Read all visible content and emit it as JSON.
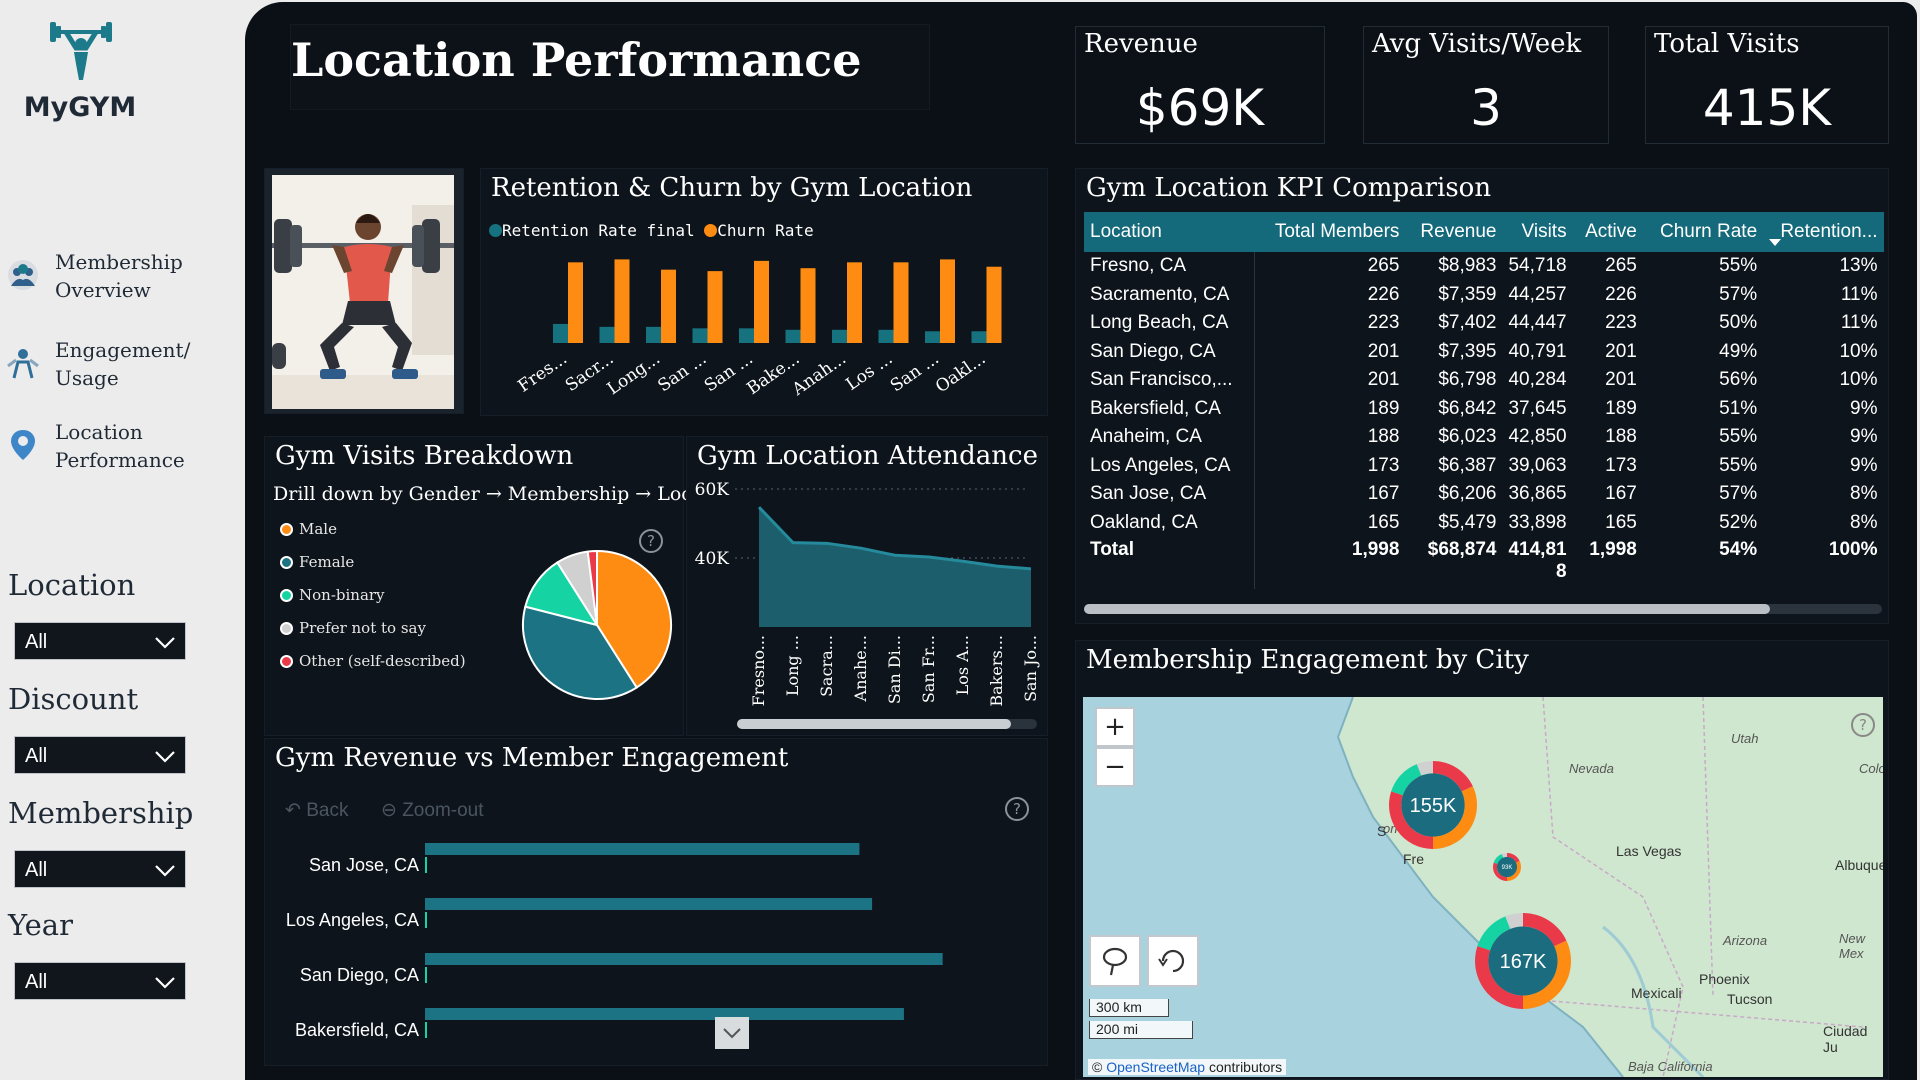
{
  "brand": {
    "name": "MyGYM"
  },
  "nav": [
    {
      "line1": "Membership",
      "line2": "Overview",
      "icon": "membership-icon"
    },
    {
      "line1": "Engagement/",
      "line2": "Usage",
      "icon": "engagement-icon"
    },
    {
      "line1": "Location",
      "line2": "Performance",
      "icon": "location-pin-icon"
    }
  ],
  "filters": [
    {
      "label": "Location",
      "value": "All"
    },
    {
      "label": "Discount",
      "value": "All"
    },
    {
      "label": "Membership",
      "value": "All"
    },
    {
      "label": "Year",
      "value": "All"
    }
  ],
  "page_title": "Location Performance",
  "kpis": [
    {
      "label": "Revenue",
      "value": "$69K"
    },
    {
      "label": "Avg Visits/Week",
      "value": "3"
    },
    {
      "label": "Total Visits",
      "value": "415K"
    }
  ],
  "retention_chart": {
    "title": "Retention & Churn by Gym Location",
    "legend": [
      "Retention Rate final",
      "Churn Rate"
    ],
    "colors": {
      "retention": "#17727f",
      "churn": "#ff8c12"
    }
  },
  "pie_chart": {
    "title": "Gym Visits Breakdown",
    "subtitle": "Drill down by Gender → Membership → Loc...",
    "legend": [
      "Male",
      "Female",
      "Non-binary",
      "Prefer not to say",
      "Other (self-described)"
    ],
    "colors": [
      "#ff8c12",
      "#1b7384",
      "#16d3a4",
      "#d0d0d0",
      "#ea3a49"
    ]
  },
  "attendance_chart": {
    "title": "Gym Location Attendance",
    "yticks": [
      "60K",
      "40K"
    ],
    "color": "#1c5e6b"
  },
  "revenue_chart": {
    "title": "Gym Revenue vs Member Engagement",
    "back_label": "Back",
    "zoom_label": "Zoom-out",
    "color": "#1b7384"
  },
  "kpi_table": {
    "title": "Gym Location KPI Comparison",
    "columns": [
      "Location",
      "Total Members",
      "Revenue",
      "Visits",
      "Active",
      "Churn Rate",
      "Retention..."
    ],
    "rows": [
      [
        "Fresno, CA",
        "265",
        "$8,983",
        "54,718",
        "265",
        "55%",
        "13%"
      ],
      [
        "Sacramento, CA",
        "226",
        "$7,359",
        "44,257",
        "226",
        "57%",
        "11%"
      ],
      [
        "Long Beach, CA",
        "223",
        "$7,402",
        "44,447",
        "223",
        "50%",
        "11%"
      ],
      [
        "San Diego, CA",
        "201",
        "$7,395",
        "40,791",
        "201",
        "49%",
        "10%"
      ],
      [
        "San Francisco,...",
        "201",
        "$6,798",
        "40,284",
        "201",
        "56%",
        "10%"
      ],
      [
        "Bakersfield, CA",
        "189",
        "$6,842",
        "37,645",
        "189",
        "51%",
        "9%"
      ],
      [
        "Anaheim, CA",
        "188",
        "$6,023",
        "42,850",
        "188",
        "55%",
        "9%"
      ],
      [
        "Los Angeles, CA",
        "173",
        "$6,387",
        "39,063",
        "173",
        "55%",
        "9%"
      ],
      [
        "San Jose, CA",
        "167",
        "$6,206",
        "36,865",
        "167",
        "57%",
        "8%"
      ],
      [
        "Oakland, CA",
        "165",
        "$5,479",
        "33,898",
        "165",
        "52%",
        "8%"
      ]
    ],
    "total": [
      "Total",
      "1,998",
      "$68,874",
      "414,818",
      "1,998",
      "54%",
      "100%"
    ]
  },
  "map_panel": {
    "title": "Membership Engagement by City",
    "zoom_in": "+",
    "zoom_out": "−",
    "bubbles": [
      "155K",
      "167K",
      "93K"
    ],
    "scale_km": "300 km",
    "scale_mi": "200 mi",
    "attribution_link": "OpenStreetMap",
    "attribution_rest": " contributors",
    "place_labels": [
      "Utah",
      "Nevada",
      "Las Vegas",
      "Arizona",
      "Albuquerq",
      "New Mex",
      "Phoenix",
      "Tucson",
      "Mexicali",
      "Ciudad Ju",
      "Colo",
      "Baja California",
      "ornia",
      "Fre",
      "S",
      "to"
    ]
  },
  "chart_data": [
    {
      "type": "bar",
      "title": "Retention & Churn by Gym Location",
      "categories": [
        "Fres...",
        "Sacr...",
        "Long...",
        "San ...",
        "San ...",
        "Bake...",
        "Anah...",
        "Los ...",
        "San ...",
        "Oakl..."
      ],
      "series": [
        {
          "name": "Retention Rate final",
          "values": [
            13,
            11,
            11,
            10,
            10,
            9,
            9,
            9,
            8,
            8
          ]
        },
        {
          "name": "Churn Rate",
          "values": [
            55,
            57,
            50,
            49,
            56,
            51,
            55,
            55,
            57,
            52
          ]
        }
      ],
      "ylim": [
        0,
        60
      ]
    },
    {
      "type": "pie",
      "title": "Gym Visits Breakdown",
      "categories": [
        "Male",
        "Female",
        "Non-binary",
        "Prefer not to say",
        "Other (self-described)"
      ],
      "values": [
        41,
        38,
        12,
        7,
        2
      ]
    },
    {
      "type": "area",
      "title": "Gym Location Attendance",
      "categories": [
        "Fresno...",
        "Long ...",
        "Sacra...",
        "Anahe...",
        "San Di...",
        "San Fr...",
        "Los A...",
        "Bakers...",
        "San Jo..."
      ],
      "values": [
        54718,
        44447,
        44257,
        42850,
        40791,
        40284,
        39063,
        37645,
        36865
      ],
      "yticks": [
        "60K",
        "40K"
      ],
      "ylim": [
        20000,
        60000
      ]
    },
    {
      "type": "bar",
      "title": "Gym Revenue vs Member Engagement",
      "categories": [
        "San Jose, CA",
        "Los Angeles, CA",
        "San Diego, CA",
        "Bakersfield, CA"
      ],
      "values": [
        6206,
        6387,
        7395,
        6842
      ],
      "xlim": [
        0,
        8000
      ]
    }
  ]
}
